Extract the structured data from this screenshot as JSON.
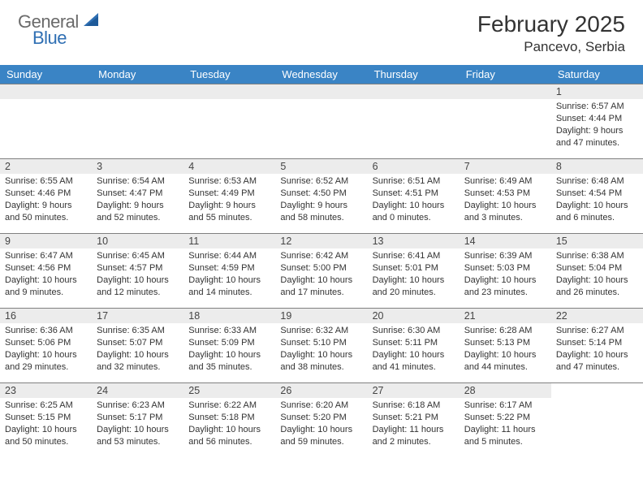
{
  "brand": {
    "word1": "General",
    "word2": "Blue",
    "word1_color": "#6a6a6a",
    "word2_color": "#2f6fb3",
    "shape_color": "#2f6fb3"
  },
  "header": {
    "month_title": "February 2025",
    "location": "Pancevo, Serbia"
  },
  "styling": {
    "header_bg": "#3a84c5",
    "header_text": "#ffffff",
    "daynum_bg": "#ececec",
    "cell_border": "#808080",
    "body_font": "Arial",
    "title_fontsize": 28,
    "location_fontsize": 17,
    "dayheader_fontsize": 13,
    "daynum_fontsize": 12.5,
    "content_fontsize": 11
  },
  "day_headers": [
    "Sunday",
    "Monday",
    "Tuesday",
    "Wednesday",
    "Thursday",
    "Friday",
    "Saturday"
  ],
  "weeks": [
    [
      null,
      null,
      null,
      null,
      null,
      null,
      {
        "n": "1",
        "sunrise": "Sunrise: 6:57 AM",
        "sunset": "Sunset: 4:44 PM",
        "daylight": "Daylight: 9 hours and 47 minutes."
      }
    ],
    [
      {
        "n": "2",
        "sunrise": "Sunrise: 6:55 AM",
        "sunset": "Sunset: 4:46 PM",
        "daylight": "Daylight: 9 hours and 50 minutes."
      },
      {
        "n": "3",
        "sunrise": "Sunrise: 6:54 AM",
        "sunset": "Sunset: 4:47 PM",
        "daylight": "Daylight: 9 hours and 52 minutes."
      },
      {
        "n": "4",
        "sunrise": "Sunrise: 6:53 AM",
        "sunset": "Sunset: 4:49 PM",
        "daylight": "Daylight: 9 hours and 55 minutes."
      },
      {
        "n": "5",
        "sunrise": "Sunrise: 6:52 AM",
        "sunset": "Sunset: 4:50 PM",
        "daylight": "Daylight: 9 hours and 58 minutes."
      },
      {
        "n": "6",
        "sunrise": "Sunrise: 6:51 AM",
        "sunset": "Sunset: 4:51 PM",
        "daylight": "Daylight: 10 hours and 0 minutes."
      },
      {
        "n": "7",
        "sunrise": "Sunrise: 6:49 AM",
        "sunset": "Sunset: 4:53 PM",
        "daylight": "Daylight: 10 hours and 3 minutes."
      },
      {
        "n": "8",
        "sunrise": "Sunrise: 6:48 AM",
        "sunset": "Sunset: 4:54 PM",
        "daylight": "Daylight: 10 hours and 6 minutes."
      }
    ],
    [
      {
        "n": "9",
        "sunrise": "Sunrise: 6:47 AM",
        "sunset": "Sunset: 4:56 PM",
        "daylight": "Daylight: 10 hours and 9 minutes."
      },
      {
        "n": "10",
        "sunrise": "Sunrise: 6:45 AM",
        "sunset": "Sunset: 4:57 PM",
        "daylight": "Daylight: 10 hours and 12 minutes."
      },
      {
        "n": "11",
        "sunrise": "Sunrise: 6:44 AM",
        "sunset": "Sunset: 4:59 PM",
        "daylight": "Daylight: 10 hours and 14 minutes."
      },
      {
        "n": "12",
        "sunrise": "Sunrise: 6:42 AM",
        "sunset": "Sunset: 5:00 PM",
        "daylight": "Daylight: 10 hours and 17 minutes."
      },
      {
        "n": "13",
        "sunrise": "Sunrise: 6:41 AM",
        "sunset": "Sunset: 5:01 PM",
        "daylight": "Daylight: 10 hours and 20 minutes."
      },
      {
        "n": "14",
        "sunrise": "Sunrise: 6:39 AM",
        "sunset": "Sunset: 5:03 PM",
        "daylight": "Daylight: 10 hours and 23 minutes."
      },
      {
        "n": "15",
        "sunrise": "Sunrise: 6:38 AM",
        "sunset": "Sunset: 5:04 PM",
        "daylight": "Daylight: 10 hours and 26 minutes."
      }
    ],
    [
      {
        "n": "16",
        "sunrise": "Sunrise: 6:36 AM",
        "sunset": "Sunset: 5:06 PM",
        "daylight": "Daylight: 10 hours and 29 minutes."
      },
      {
        "n": "17",
        "sunrise": "Sunrise: 6:35 AM",
        "sunset": "Sunset: 5:07 PM",
        "daylight": "Daylight: 10 hours and 32 minutes."
      },
      {
        "n": "18",
        "sunrise": "Sunrise: 6:33 AM",
        "sunset": "Sunset: 5:09 PM",
        "daylight": "Daylight: 10 hours and 35 minutes."
      },
      {
        "n": "19",
        "sunrise": "Sunrise: 6:32 AM",
        "sunset": "Sunset: 5:10 PM",
        "daylight": "Daylight: 10 hours and 38 minutes."
      },
      {
        "n": "20",
        "sunrise": "Sunrise: 6:30 AM",
        "sunset": "Sunset: 5:11 PM",
        "daylight": "Daylight: 10 hours and 41 minutes."
      },
      {
        "n": "21",
        "sunrise": "Sunrise: 6:28 AM",
        "sunset": "Sunset: 5:13 PM",
        "daylight": "Daylight: 10 hours and 44 minutes."
      },
      {
        "n": "22",
        "sunrise": "Sunrise: 6:27 AM",
        "sunset": "Sunset: 5:14 PM",
        "daylight": "Daylight: 10 hours and 47 minutes."
      }
    ],
    [
      {
        "n": "23",
        "sunrise": "Sunrise: 6:25 AM",
        "sunset": "Sunset: 5:15 PM",
        "daylight": "Daylight: 10 hours and 50 minutes."
      },
      {
        "n": "24",
        "sunrise": "Sunrise: 6:23 AM",
        "sunset": "Sunset: 5:17 PM",
        "daylight": "Daylight: 10 hours and 53 minutes."
      },
      {
        "n": "25",
        "sunrise": "Sunrise: 6:22 AM",
        "sunset": "Sunset: 5:18 PM",
        "daylight": "Daylight: 10 hours and 56 minutes."
      },
      {
        "n": "26",
        "sunrise": "Sunrise: 6:20 AM",
        "sunset": "Sunset: 5:20 PM",
        "daylight": "Daylight: 10 hours and 59 minutes."
      },
      {
        "n": "27",
        "sunrise": "Sunrise: 6:18 AM",
        "sunset": "Sunset: 5:21 PM",
        "daylight": "Daylight: 11 hours and 2 minutes."
      },
      {
        "n": "28",
        "sunrise": "Sunrise: 6:17 AM",
        "sunset": "Sunset: 5:22 PM",
        "daylight": "Daylight: 11 hours and 5 minutes."
      },
      null
    ]
  ]
}
